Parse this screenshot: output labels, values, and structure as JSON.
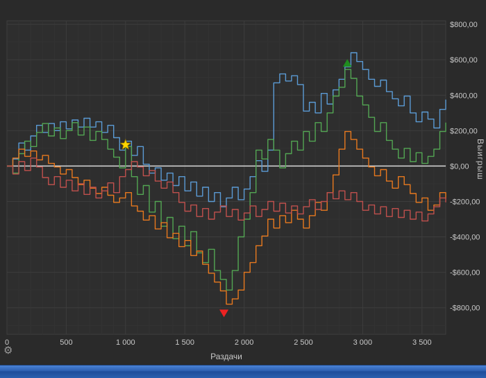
{
  "chart_data": {
    "type": "line",
    "title": "",
    "xlabel": "Раздачи",
    "ylabel": "Выигрыш",
    "xlim": [
      0,
      3700
    ],
    "ylim": [
      -950,
      820
    ],
    "grid": true,
    "zero_line": true,
    "legend": "none",
    "x_step": 50,
    "x_ticks": {
      "values": [
        0,
        500,
        1000,
        1500,
        2000,
        2500,
        3000,
        3500
      ],
      "labels": [
        "0",
        "500",
        "1 000",
        "1 500",
        "2 000",
        "2 500",
        "3 000",
        "3 500"
      ]
    },
    "y_ticks": {
      "values": [
        800,
        600,
        400,
        200,
        0,
        -200,
        -400,
        -600,
        -800
      ],
      "labels": [
        "$800,00",
        "$600,00",
        "$400,00",
        "$200,00",
        "$0,00",
        "-$200,00",
        "-$400,00",
        "-$600,00",
        "-$800,00"
      ]
    },
    "series": [
      {
        "name": "blue",
        "color": "#5b9bd5",
        "values": [
          0,
          40,
          130,
          90,
          170,
          230,
          190,
          240,
          200,
          250,
          210,
          260,
          220,
          270,
          220,
          250,
          190,
          230,
          160,
          90,
          140,
          60,
          110,
          10,
          -40,
          -10,
          -80,
          -40,
          -110,
          -60,
          -140,
          -90,
          -170,
          -120,
          -200,
          -150,
          -230,
          -180,
          -120,
          -190,
          -130,
          -60,
          30,
          -30,
          90,
          470,
          520,
          480,
          510,
          460,
          310,
          360,
          300,
          410,
          350,
          430,
          490,
          560,
          640,
          590,
          545,
          490,
          450,
          485,
          420,
          380,
          340,
          395,
          300,
          250,
          305,
          265,
          215,
          320,
          375
        ]
      },
      {
        "name": "green",
        "color": "#53a653",
        "values": [
          0,
          -40,
          70,
          140,
          110,
          190,
          240,
          170,
          215,
          155,
          200,
          245,
          175,
          220,
          145,
          195,
          150,
          95,
          50,
          -10,
          110,
          -60,
          -160,
          -110,
          -260,
          -200,
          -340,
          -290,
          -410,
          -340,
          -450,
          -370,
          -490,
          -545,
          -470,
          -590,
          -640,
          -700,
          -590,
          -400,
          -300,
          -150,
          90,
          40,
          150,
          90,
          -10,
          70,
          140,
          90,
          195,
          140,
          245,
          195,
          300,
          395,
          445,
          545,
          495,
          395,
          345,
          275,
          195,
          245,
          145,
          95,
          45,
          100,
          25,
          75,
          15,
          55,
          95,
          195,
          245
        ]
      },
      {
        "name": "orange",
        "color": "#e8791e",
        "values": [
          0,
          45,
          95,
          55,
          85,
          35,
          60,
          15,
          -5,
          -45,
          -20,
          -65,
          -105,
          -80,
          -125,
          -155,
          -120,
          -165,
          -205,
          -180,
          -150,
          -225,
          -255,
          -305,
          -280,
          -355,
          -320,
          -405,
          -380,
          -455,
          -420,
          -505,
          -480,
          -555,
          -605,
          -655,
          -705,
          -780,
          -750,
          -700,
          -600,
          -545,
          -450,
          -395,
          -300,
          -350,
          -280,
          -320,
          -250,
          -300,
          -350,
          -280,
          -205,
          -250,
          -150,
          -50,
          95,
          195,
          150,
          95,
          45,
          -5,
          -55,
          -20,
          -85,
          -125,
          -60,
          -105,
          -155,
          -205,
          -180,
          -250,
          -220,
          -150,
          -185
        ]
      },
      {
        "name": "red",
        "color": "#c0504d",
        "values": [
          0,
          -45,
          25,
          -25,
          45,
          -5,
          -65,
          -105,
          -60,
          -120,
          -80,
          -140,
          -100,
          -160,
          -120,
          -180,
          -140,
          -95,
          -150,
          -60,
          -20,
          25,
          -5,
          -55,
          -25,
          -85,
          -125,
          -90,
          -150,
          -205,
          -255,
          -220,
          -285,
          -240,
          -300,
          -260,
          -225,
          -285,
          -245,
          -305,
          -265,
          -225,
          -285,
          -245,
          -200,
          -255,
          -210,
          -265,
          -225,
          -270,
          -230,
          -190,
          -245,
          -200,
          -150,
          -185,
          -140,
          -190,
          -150,
          -200,
          -250,
          -220,
          -270,
          -230,
          -285,
          -240,
          -290,
          -250,
          -300,
          -260,
          -310,
          -270,
          -230,
          -180,
          -205
        ]
      }
    ],
    "markers": [
      {
        "shape": "star",
        "color": "#ffd700",
        "x": 1000,
        "y": 120
      },
      {
        "shape": "triangle-up",
        "color": "#1f8c1f",
        "x": 2870,
        "y": 580
      },
      {
        "shape": "triangle-down",
        "color": "#ee2222",
        "x": 1830,
        "y": -830
      }
    ]
  },
  "ui": {
    "gear_glyph": "⚙",
    "taskbar_color": "#2f63b4",
    "background_color": "#2a2a2a",
    "grid_color": "#3d3d3d",
    "text_color": "#c9c9c9",
    "zero_line_color": "#dadada"
  }
}
